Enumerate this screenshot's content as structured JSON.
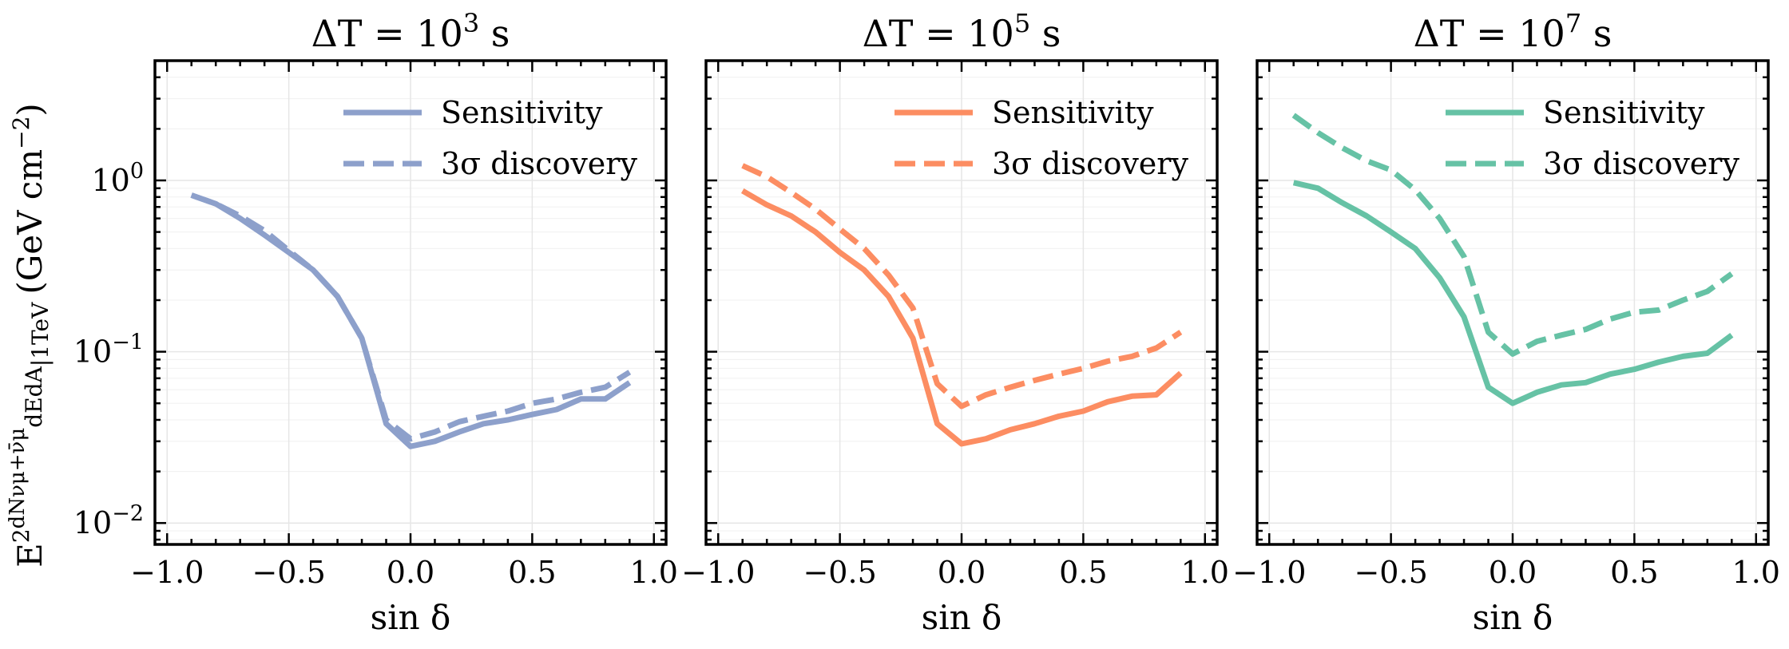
{
  "figure": {
    "ylabel": "E²(dN_{νμ+ν̄μ}/dE dA)|_{1TeV} (GeV cm⁻²)",
    "ylabel_parts": {
      "lead": "E",
      "sup": "2",
      "frac_num": "dNνμ+ν̄μ",
      "frac_den": "dEdA",
      "sub": "|1TeV",
      "unit": "(GeV cm",
      "unit_exp": "−2",
      "unit_close": ")"
    },
    "xlabel": "sin δ"
  },
  "chart_data": [
    {
      "type": "line",
      "title": "ΔT = 10³ s",
      "title_parts": {
        "prefix": "ΔT = 10",
        "exp": "3",
        "suffix": " s"
      },
      "xlabel": "sin δ",
      "ylabel": "E² dN/dEdA |1TeV (GeV cm⁻²)",
      "xlim": [
        -1.05,
        1.05
      ],
      "ylim": [
        0.0075,
        5.0
      ],
      "yscale": "log",
      "grid": true,
      "legend_position": "top-right",
      "color": "#8da0cb",
      "x_ticks": [
        -1.0,
        -0.5,
        0.0,
        0.5,
        1.0
      ],
      "x_tick_labels": [
        "−1.0",
        "−0.5",
        "0.0",
        "0.5",
        "1.0"
      ],
      "y_ticks": [
        0.01,
        0.1,
        1.0
      ],
      "y_tick_labels": [
        {
          "base": "10",
          "exp": "−2"
        },
        {
          "base": "10",
          "exp": "−1"
        },
        {
          "base": "10",
          "exp": "0"
        }
      ],
      "series": [
        {
          "name": "Sensitivity",
          "style": "solid",
          "x": [
            -0.9,
            -0.8,
            -0.7,
            -0.6,
            -0.5,
            -0.4,
            -0.3,
            -0.2,
            -0.1,
            0.0,
            0.1,
            0.2,
            0.3,
            0.4,
            0.5,
            0.6,
            0.7,
            0.8,
            0.9
          ],
          "values": [
            0.82,
            0.73,
            0.6,
            0.48,
            0.38,
            0.3,
            0.21,
            0.12,
            0.038,
            0.028,
            0.03,
            0.034,
            0.038,
            0.04,
            0.043,
            0.046,
            0.053,
            0.053,
            0.066
          ]
        },
        {
          "name": "3σ discovery",
          "style": "dashed",
          "x": [
            -0.9,
            -0.8,
            -0.7,
            -0.6,
            -0.5,
            -0.4,
            -0.3,
            -0.2,
            -0.1,
            0.0,
            0.1,
            0.2,
            0.3,
            0.4,
            0.5,
            0.6,
            0.7,
            0.8,
            0.9
          ],
          "values": [
            0.82,
            0.73,
            0.62,
            0.51,
            0.39,
            0.3,
            0.21,
            0.12,
            0.04,
            0.031,
            0.034,
            0.039,
            0.042,
            0.045,
            0.05,
            0.053,
            0.058,
            0.062,
            0.076
          ]
        }
      ]
    },
    {
      "type": "line",
      "title": "ΔT = 10⁵ s",
      "title_parts": {
        "prefix": "ΔT = 10",
        "exp": "5",
        "suffix": " s"
      },
      "xlabel": "sin δ",
      "ylabel": "",
      "xlim": [
        -1.05,
        1.05
      ],
      "ylim": [
        0.0075,
        5.0
      ],
      "yscale": "log",
      "grid": true,
      "legend_position": "top-right",
      "color": "#fc8d62",
      "x_ticks": [
        -1.0,
        -0.5,
        0.0,
        0.5,
        1.0
      ],
      "x_tick_labels": [
        "−1.0",
        "−0.5",
        "0.0",
        "0.5",
        "1.0"
      ],
      "y_ticks": [
        0.01,
        0.1,
        1.0
      ],
      "y_tick_labels": [],
      "series": [
        {
          "name": "Sensitivity",
          "style": "solid",
          "x": [
            -0.9,
            -0.8,
            -0.7,
            -0.6,
            -0.5,
            -0.4,
            -0.3,
            -0.2,
            -0.1,
            0.0,
            0.1,
            0.2,
            0.3,
            0.4,
            0.5,
            0.6,
            0.7,
            0.8,
            0.9
          ],
          "values": [
            0.87,
            0.72,
            0.62,
            0.5,
            0.38,
            0.3,
            0.21,
            0.12,
            0.038,
            0.029,
            0.031,
            0.035,
            0.038,
            0.042,
            0.045,
            0.051,
            0.055,
            0.056,
            0.075
          ]
        },
        {
          "name": "3σ discovery",
          "style": "dashed",
          "x": [
            -0.9,
            -0.8,
            -0.7,
            -0.6,
            -0.5,
            -0.4,
            -0.3,
            -0.2,
            -0.1,
            0.0,
            0.1,
            0.2,
            0.3,
            0.4,
            0.5,
            0.6,
            0.7,
            0.8,
            0.9
          ],
          "values": [
            1.22,
            1.05,
            0.85,
            0.68,
            0.52,
            0.4,
            0.28,
            0.18,
            0.065,
            0.048,
            0.056,
            0.062,
            0.068,
            0.074,
            0.08,
            0.088,
            0.094,
            0.105,
            0.13
          ]
        }
      ]
    },
    {
      "type": "line",
      "title": "ΔT = 10⁷ s",
      "title_parts": {
        "prefix": "ΔT = 10",
        "exp": "7",
        "suffix": " s"
      },
      "xlabel": "sin δ",
      "ylabel": "",
      "xlim": [
        -1.05,
        1.05
      ],
      "ylim": [
        0.0075,
        5.0
      ],
      "yscale": "log",
      "grid": true,
      "legend_position": "top-right",
      "color": "#66c2a5",
      "x_ticks": [
        -1.0,
        -0.5,
        0.0,
        0.5,
        1.0
      ],
      "x_tick_labels": [
        "−1.0",
        "−0.5",
        "0.0",
        "0.5",
        "1.0"
      ],
      "y_ticks": [
        0.01,
        0.1,
        1.0
      ],
      "y_tick_labels": [],
      "series": [
        {
          "name": "Sensitivity",
          "style": "solid",
          "x": [
            -0.9,
            -0.8,
            -0.7,
            -0.6,
            -0.5,
            -0.4,
            -0.3,
            -0.2,
            -0.1,
            0.0,
            0.1,
            0.2,
            0.3,
            0.4,
            0.5,
            0.6,
            0.7,
            0.8,
            0.9
          ],
          "values": [
            0.97,
            0.9,
            0.74,
            0.62,
            0.5,
            0.4,
            0.27,
            0.16,
            0.062,
            0.05,
            0.058,
            0.064,
            0.066,
            0.074,
            0.079,
            0.087,
            0.094,
            0.098,
            0.125
          ]
        },
        {
          "name": "3σ discovery",
          "style": "dashed",
          "x": [
            -0.9,
            -0.8,
            -0.7,
            -0.6,
            -0.5,
            -0.4,
            -0.3,
            -0.2,
            -0.1,
            0.0,
            0.1,
            0.2,
            0.3,
            0.4,
            0.5,
            0.6,
            0.7,
            0.8,
            0.9
          ],
          "values": [
            2.4,
            1.9,
            1.55,
            1.3,
            1.15,
            0.88,
            0.6,
            0.36,
            0.13,
            0.097,
            0.115,
            0.125,
            0.135,
            0.155,
            0.17,
            0.175,
            0.2,
            0.225,
            0.285
          ]
        }
      ]
    }
  ]
}
